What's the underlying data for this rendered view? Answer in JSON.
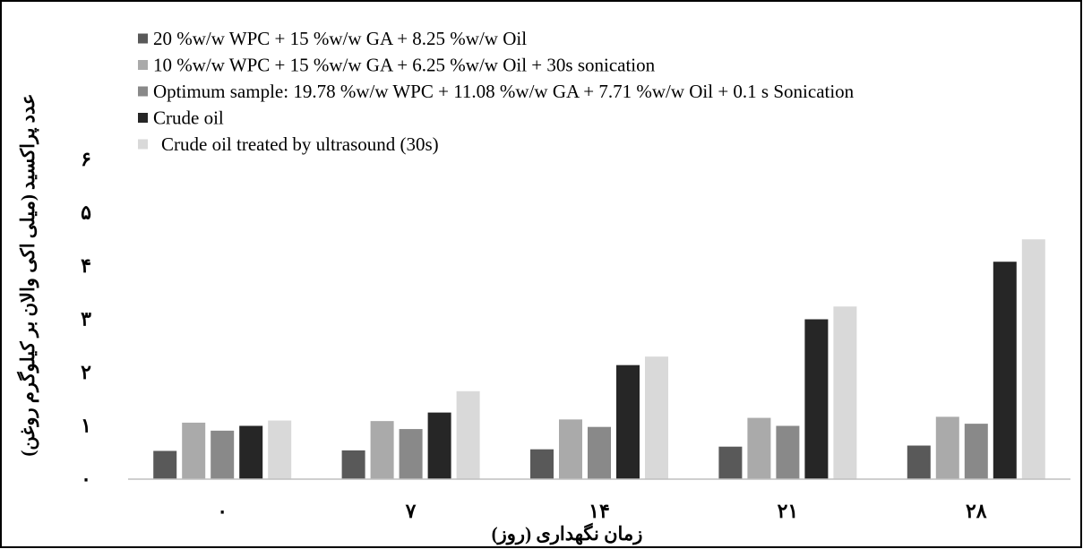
{
  "chart_data": {
    "type": "bar",
    "title": "",
    "xlabel": "زمان نگهداری (روز)",
    "ylabel": "عدد پراکسید (میلی اکی والان بر کیلوگرم روغن)",
    "categories": [
      "۰",
      "۷",
      "۱۴",
      "۲۱",
      "۲۸"
    ],
    "yticks": [
      "۰",
      "۱",
      "۲",
      "۳",
      "۴",
      "۵",
      "۶"
    ],
    "ylim": [
      0,
      6
    ],
    "grid": false,
    "legend_position": "top-left",
    "series": [
      {
        "name": "20 %w/w WPC + 15 %w/w GA + 8.25 %w/w Oil",
        "color": "#595959",
        "values": [
          0.53,
          0.54,
          0.56,
          0.61,
          0.63
        ]
      },
      {
        "name": "10 %w/w WPC + 15 %w/w GA + 6.25 %w/w Oil + 30s sonication",
        "color": "#aaaaaa",
        "values": [
          1.06,
          1.09,
          1.12,
          1.15,
          1.17
        ]
      },
      {
        "name": "Optimum sample: 19.78 %w/w WPC + 11.08 %w/w GA + 7.71 %w/w Oil + 0.1 s Sonication",
        "color": "#898989",
        "values": [
          0.91,
          0.94,
          0.98,
          1.0,
          1.04
        ]
      },
      {
        "name": "Crude oil",
        "color": "#262626",
        "values": [
          1.0,
          1.25,
          2.14,
          3.0,
          4.08
        ]
      },
      {
        "name": "Crude oil treated by ultrasound (30s)",
        "color": "#d9d9d9",
        "values": [
          1.1,
          1.65,
          2.3,
          3.24,
          4.5
        ]
      }
    ]
  }
}
